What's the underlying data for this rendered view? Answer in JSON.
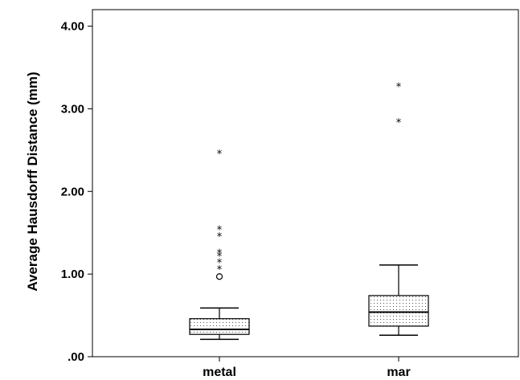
{
  "chart_data": {
    "type": "boxplot",
    "ylabel": "Average Hausdorff Distance (mm)",
    "xlabel": "",
    "ylim": [
      0,
      4.2
    ],
    "yticks": [
      0,
      1,
      2,
      3,
      4
    ],
    "ytick_labels": [
      ".00",
      "1.00",
      "2.00",
      "3.00",
      "4.00"
    ],
    "categories": [
      "metal",
      "mar"
    ],
    "grid": false,
    "box_fill": "dotted",
    "boxes": [
      {
        "category": "metal",
        "whisker_low": 0.21,
        "q1": 0.27,
        "median": 0.33,
        "q3": 0.46,
        "whisker_high": 0.59,
        "outliers_circle": [
          0.97
        ],
        "outliers_extreme": [
          1.07,
          1.15,
          1.23,
          1.27,
          1.47,
          1.55,
          2.47
        ]
      },
      {
        "category": "mar",
        "whisker_low": 0.26,
        "q1": 0.37,
        "median": 0.54,
        "q3": 0.74,
        "whisker_high": 1.11,
        "outliers_circle": [],
        "outliers_extreme": [
          2.85,
          3.28
        ]
      }
    ]
  }
}
